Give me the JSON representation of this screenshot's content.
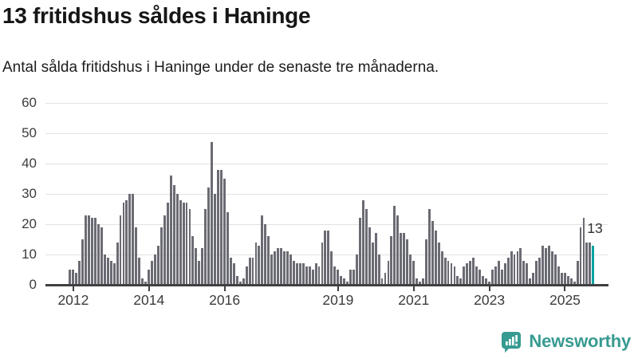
{
  "header": {
    "title": "13 fritidshus såldes i Haninge",
    "subtitle": "Antal sålda fritidshus i Haninge under de senaste tre månaderna."
  },
  "chart_data": {
    "type": "bar",
    "title": "13 fritidshus såldes i Haninge",
    "ylabel": "",
    "xlabel": "",
    "ylim": [
      0,
      60
    ],
    "yticks": [
      0,
      10,
      20,
      30,
      40,
      50,
      60
    ],
    "grid": "horizontal",
    "start_month": "2011-12",
    "end_month": "2025-10",
    "x_tick_years": [
      2012,
      2014,
      2016,
      2019,
      2021,
      2023,
      2025
    ],
    "values": [
      5,
      5,
      4,
      8,
      15,
      23,
      23,
      22,
      22,
      20,
      19,
      10,
      9,
      8,
      7,
      14,
      23,
      27,
      28,
      30,
      30,
      19,
      9,
      2,
      1,
      5,
      8,
      10,
      13,
      19,
      23,
      27,
      36,
      33,
      30,
      28,
      27,
      27,
      25,
      16,
      12,
      8,
      12,
      25,
      32,
      47,
      30,
      38,
      38,
      35,
      24,
      9,
      7,
      3,
      1,
      2,
      6,
      9,
      9,
      14,
      13,
      23,
      20,
      16,
      10,
      11,
      12,
      12,
      11,
      11,
      10,
      8,
      7,
      7,
      7,
      6,
      6,
      5,
      7,
      6,
      14,
      18,
      18,
      11,
      6,
      5,
      3,
      2,
      1,
      5,
      5,
      10,
      22,
      28,
      25,
      19,
      14,
      17,
      10,
      2,
      4,
      8,
      16,
      26,
      23,
      17,
      17,
      15,
      10,
      8,
      2,
      1,
      2,
      15,
      25,
      21,
      18,
      14,
      11,
      9,
      8,
      7,
      6,
      3,
      2,
      6,
      7,
      8,
      9,
      6,
      5,
      3,
      2,
      1,
      5,
      6,
      8,
      5,
      7,
      9,
      11,
      10,
      11,
      12,
      8,
      7,
      2,
      4,
      8,
      9,
      13,
      12,
      13,
      11,
      10,
      6,
      4,
      4,
      3,
      2,
      1,
      8,
      19,
      22,
      14,
      14,
      13
    ],
    "bar_color": "#6b6b74",
    "highlight": {
      "index": 166,
      "value": 13,
      "label": "13",
      "color": "#00a2a2"
    }
  },
  "footer": {
    "brand": "Newsworthy",
    "brand_color": "#379b91",
    "logo_icon": "bar-chart-speech-bubble-icon"
  }
}
